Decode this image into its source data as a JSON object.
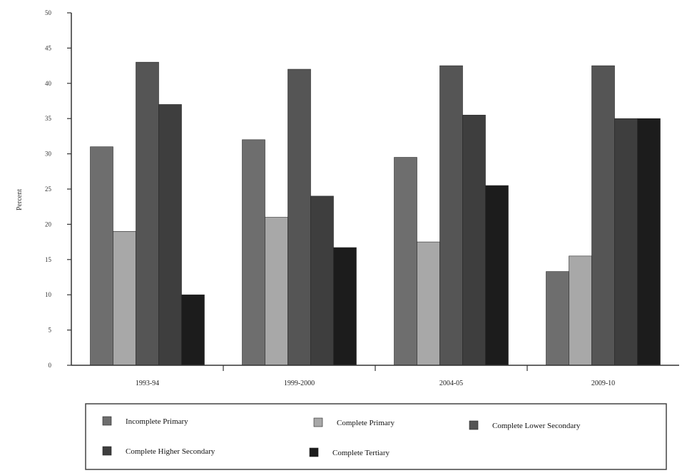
{
  "chart_data": {
    "type": "bar",
    "title": "",
    "ylabel": "Percent",
    "xlabel": "",
    "ylim": [
      0,
      50
    ],
    "yticks": [
      0,
      5,
      10,
      15,
      20,
      25,
      30,
      35,
      40,
      45,
      50
    ],
    "categories": [
      "1993-94",
      "1999-2000",
      "2004-05",
      "2009-10"
    ],
    "series": [
      {
        "name": "Incomplete Primary",
        "values": [
          31,
          32,
          29.5,
          13.3
        ],
        "color": "#6e6e6e"
      },
      {
        "name": "Complete Primary",
        "values": [
          19,
          21,
          17.5,
          15.5
        ],
        "color": "#a8a8a8"
      },
      {
        "name": "Complete Lower Secondary",
        "values": [
          43,
          42,
          42.5,
          42.5
        ],
        "color": "#555555"
      },
      {
        "name": "Complete Higher Secondary",
        "values": [
          37,
          24,
          35.5,
          35
        ],
        "color": "#3e3e3e"
      },
      {
        "name": "Complete Tertiary",
        "values": [
          10,
          16.7,
          25.5,
          35
        ],
        "color": "#1c1c1c"
      }
    ],
    "grid": false,
    "legend_position": "bottom"
  }
}
